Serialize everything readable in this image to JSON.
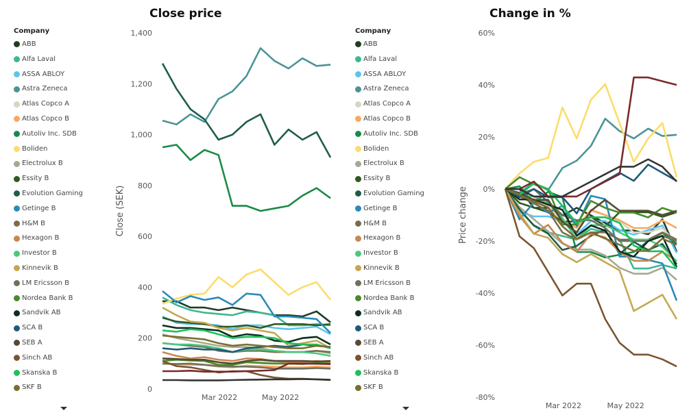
{
  "legend": {
    "title": "Company"
  },
  "chart_data": [
    {
      "type": "line",
      "title": "Close price",
      "xlabel": "",
      "ylabel": "Close (SEK)",
      "ylim": [
        0,
        1400
      ],
      "yticks": [
        "0",
        "200",
        "400",
        "600",
        "800",
        "1,000",
        "1,200",
        "1,400"
      ],
      "ytick_values": [
        0,
        200,
        400,
        600,
        800,
        1000,
        1200,
        1400
      ],
      "xlim": [
        "2022-01-03",
        "2022-06-22"
      ],
      "xticks": [
        {
          "date": "2022-03-01",
          "label": "Mar 2022"
        },
        {
          "date": "2022-05-01",
          "label": "May 2022"
        }
      ],
      "grid": false,
      "legend_position": "left",
      "x": [
        "2022-01-03",
        "2022-01-17",
        "2022-01-31",
        "2022-02-14",
        "2022-02-28",
        "2022-03-14",
        "2022-03-28",
        "2022-04-11",
        "2022-04-25",
        "2022-05-09",
        "2022-05-23",
        "2022-06-06",
        "2022-06-20"
      ],
      "series": [
        {
          "name": "ABB",
          "color": "#1f3d26",
          "values": [
            345,
            345,
            320,
            320,
            310,
            320,
            310,
            300,
            290,
            290,
            285,
            305,
            262
          ]
        },
        {
          "name": "Alfa Laval",
          "color": "#3db891",
          "values": [
            360,
            330,
            310,
            300,
            295,
            290,
            305,
            300,
            290,
            250,
            250,
            255,
            250
          ]
        },
        {
          "name": "ASSA ABLOY",
          "color": "#5cc4f0",
          "values": [
            285,
            260,
            255,
            255,
            250,
            235,
            250,
            250,
            240,
            235,
            240,
            245,
            215
          ]
        },
        {
          "name": "Astra Zeneca",
          "color": "#4a9396",
          "values": [
            1055,
            1040,
            1080,
            1050,
            1140,
            1170,
            1230,
            1340,
            1290,
            1260,
            1300,
            1270,
            1275
          ]
        },
        {
          "name": "Atlas Copco A",
          "color": "#d6d6c4",
          "values": [
            120,
            118,
            115,
            112,
            105,
            100,
            110,
            108,
            105,
            100,
            100,
            102,
            95
          ]
        },
        {
          "name": "Atlas Copco B",
          "color": "#f8a860",
          "values": [
            100,
            98,
            95,
            95,
            88,
            85,
            92,
            90,
            88,
            85,
            85,
            88,
            85
          ]
        },
        {
          "name": "Autoliv Inc. SDB",
          "color": "#1a8a46",
          "values": [
            950,
            960,
            900,
            940,
            920,
            720,
            720,
            700,
            710,
            720,
            760,
            790,
            750
          ]
        },
        {
          "name": "Boliden",
          "color": "#fcdc6a",
          "values": [
            335,
            355,
            370,
            375,
            440,
            400,
            450,
            470,
            420,
            370,
            400,
            420,
            350
          ]
        },
        {
          "name": "Electrolux B",
          "color": "#a8a890",
          "values": [
            215,
            200,
            190,
            180,
            170,
            165,
            165,
            160,
            150,
            145,
            145,
            150,
            140
          ]
        },
        {
          "name": "Essity B",
          "color": "#2e5a1e",
          "values": [
            280,
            265,
            260,
            255,
            245,
            245,
            250,
            240,
            255,
            255,
            255,
            250,
            255
          ]
        },
        {
          "name": "Evolution Gaming",
          "color": "#1f5c4a",
          "values": [
            1280,
            1180,
            1100,
            1060,
            980,
            1000,
            1050,
            1080,
            960,
            1020,
            980,
            1010,
            910
          ]
        },
        {
          "name": "Getinge B",
          "color": "#2a8ab8",
          "values": [
            385,
            340,
            365,
            350,
            360,
            330,
            375,
            370,
            285,
            285,
            280,
            275,
            220
          ]
        },
        {
          "name": "H&M B",
          "color": "#7a6e4a",
          "values": [
            180,
            175,
            170,
            165,
            150,
            145,
            150,
            150,
            145,
            145,
            145,
            150,
            145
          ]
        },
        {
          "name": "Hexagon B",
          "color": "#c88650",
          "values": [
            145,
            130,
            120,
            125,
            115,
            110,
            120,
            118,
            110,
            105,
            105,
            110,
            105
          ]
        },
        {
          "name": "Investor B",
          "color": "#4ac880",
          "values": [
            180,
            175,
            175,
            170,
            160,
            145,
            155,
            155,
            150,
            145,
            145,
            140,
            130
          ]
        },
        {
          "name": "Kinnevik B",
          "color": "#c4a850",
          "values": [
            320,
            290,
            265,
            260,
            240,
            230,
            240,
            230,
            220,
            170,
            180,
            190,
            160
          ]
        },
        {
          "name": "LM Ericsson B",
          "color": "#70705e",
          "values": [
            100,
            98,
            100,
            95,
            90,
            88,
            88,
            85,
            80,
            80,
            80,
            82,
            80
          ]
        },
        {
          "name": "Nordea Bank B",
          "color": "#4a8a2a",
          "values": [
            110,
            115,
            112,
            110,
            95,
            95,
            105,
            102,
            100,
            100,
            98,
            102,
            100
          ]
        },
        {
          "name": "Sandvik AB",
          "color": "#0d2e1f",
          "values": [
            250,
            240,
            240,
            235,
            230,
            205,
            215,
            210,
            190,
            185,
            200,
            205,
            175
          ]
        },
        {
          "name": "SCA B",
          "color": "#1e5a7a",
          "values": [
            160,
            155,
            160,
            155,
            155,
            145,
            160,
            165,
            170,
            165,
            175,
            170,
            165
          ]
        },
        {
          "name": "SEB A",
          "color": "#554a35",
          "values": [
            120,
            118,
            115,
            115,
            105,
            100,
            110,
            115,
            110,
            110,
            110,
            108,
            110
          ]
        },
        {
          "name": "Sinch AB",
          "color": "#7a5530",
          "values": [
            110,
            90,
            85,
            75,
            65,
            70,
            70,
            55,
            45,
            40,
            40,
            38,
            35
          ]
        },
        {
          "name": "Skanska B",
          "color": "#1ec05a",
          "values": [
            230,
            225,
            235,
            230,
            215,
            200,
            205,
            205,
            200,
            180,
            175,
            175,
            160
          ]
        },
        {
          "name": "SKF B",
          "color": "#7a6e30",
          "values": [
            210,
            205,
            200,
            195,
            180,
            170,
            175,
            170,
            165,
            160,
            160,
            170,
            165
          ]
        },
        {
          "color": "#7a2a2a",
          "values": [
            70,
            70,
            72,
            68,
            68,
            68,
            70,
            72,
            74,
            100,
            100,
            99,
            98
          ]
        },
        {
          "color": "#333333",
          "values": [
            35,
            35,
            34,
            34,
            34,
            35,
            36,
            37,
            38,
            38,
            39,
            38,
            36
          ]
        }
      ]
    },
    {
      "type": "line",
      "title": "Change in %",
      "xlabel": "",
      "ylabel": "Price change",
      "ylim": [
        -80,
        60
      ],
      "yticks": [
        "-80%",
        "-60%",
        "-40%",
        "-20%",
        "0%",
        "20%",
        "40%",
        "60%"
      ],
      "ytick_values": [
        -80,
        -60,
        -40,
        -20,
        0,
        20,
        40,
        60
      ],
      "xlim": [
        "2022-01-03",
        "2022-06-22"
      ],
      "xticks": [
        {
          "date": "2022-03-01",
          "label": "Mar 2022"
        },
        {
          "date": "2022-05-01",
          "label": "May 2022"
        }
      ],
      "grid": false,
      "legend_position": "left",
      "series_basis": "percent change vs first close of each series in Close price chart"
    }
  ]
}
